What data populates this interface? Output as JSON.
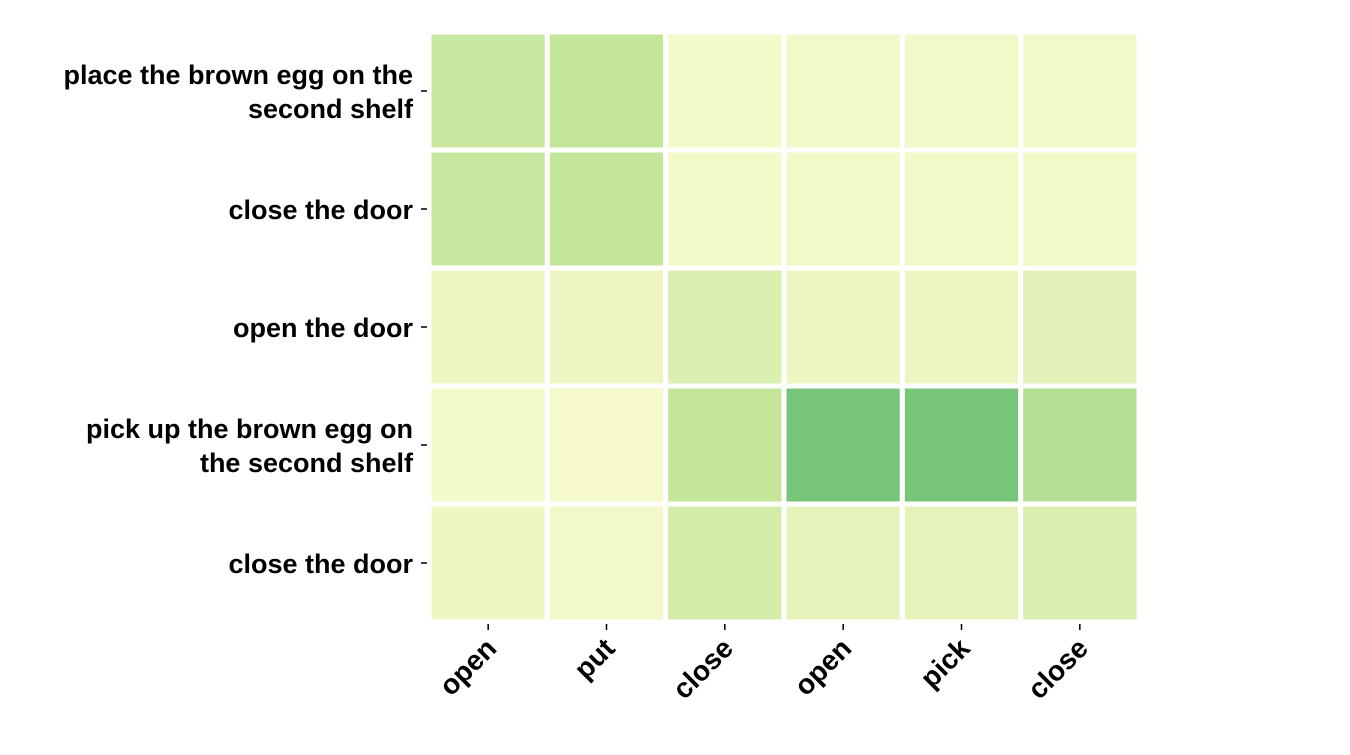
{
  "chart_data": {
    "type": "heatmap",
    "title": "",
    "xlabel": "",
    "ylabel": "",
    "x_categories": [
      "open",
      "put",
      "close",
      "open",
      "pick",
      "close"
    ],
    "y_categories": [
      [
        "place the brown egg on the",
        "second shelf"
      ],
      [
        "close the door"
      ],
      [
        "open the door"
      ],
      [
        "pick up the brown egg on",
        "the second shelf"
      ],
      [
        "close the door"
      ]
    ],
    "values": [
      [
        0.45,
        0.5,
        0.05,
        0.06,
        0.06,
        0.06
      ],
      [
        0.45,
        0.5,
        0.05,
        0.06,
        0.06,
        0.06
      ],
      [
        0.12,
        0.11,
        0.28,
        0.12,
        0.11,
        0.22
      ],
      [
        0.05,
        0.04,
        0.5,
        0.95,
        0.95,
        0.6
      ],
      [
        0.1,
        0.07,
        0.35,
        0.2,
        0.2,
        0.3
      ]
    ],
    "colormap": {
      "low": "#f9fbcf",
      "mid": "#c4e69a",
      "high": "#6ec174"
    },
    "grid_color": "#ffffff",
    "colorbar": false
  }
}
